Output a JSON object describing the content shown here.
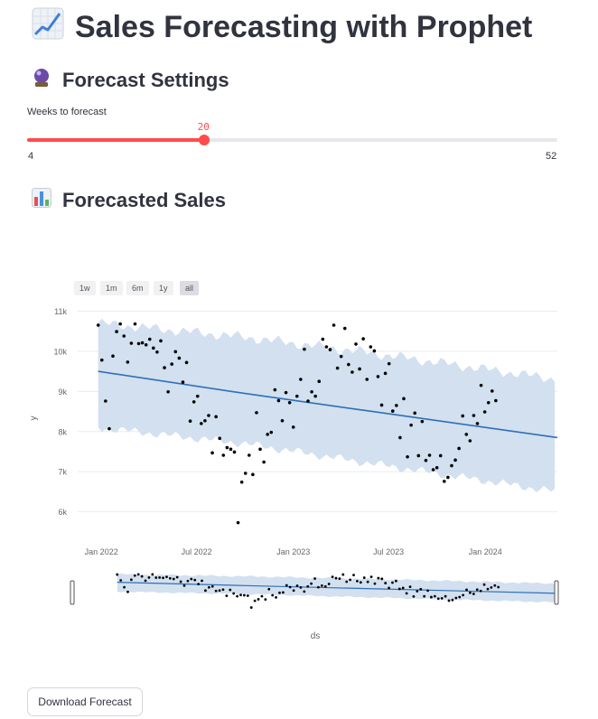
{
  "header": {
    "title": "Sales Forecasting with Prophet"
  },
  "settings": {
    "heading": "Forecast Settings",
    "slider": {
      "label": "Weeks to forecast",
      "value": 20,
      "min": 4,
      "max": 52,
      "value_text": "20",
      "min_text": "4",
      "max_text": "52"
    }
  },
  "forecast": {
    "heading": "Forecasted Sales"
  },
  "range_selector": [
    "1w",
    "1m",
    "6m",
    "1y",
    "all"
  ],
  "range_selector_active": "all",
  "download_button": {
    "label": "Download Forecast"
  },
  "colors": {
    "accent": "#ff4b4b",
    "trend_line": "#2f6fb7",
    "band": "#d2e0ef",
    "points": "#000000"
  },
  "chart_data": {
    "type": "scatter",
    "xlabel": "ds",
    "ylabel": "y",
    "x_tick_labels": [
      "Jan 2022",
      "Jul 2022",
      "Jan 2023",
      "Jul 2023",
      "Jan 2024"
    ],
    "x_ticks": [
      "2022-01-01",
      "2022-07-01",
      "2023-01-01",
      "2023-07-01",
      "2024-01-01"
    ],
    "xlim": [
      "2021-11-17",
      "2024-05-17"
    ],
    "y_tick_labels": [
      "6k",
      "7k",
      "8k",
      "9k",
      "10k",
      "11k"
    ],
    "y_ticks": [
      6000,
      7000,
      8000,
      9000,
      10000,
      11000
    ],
    "ylim": [
      5700,
      11100
    ],
    "grid": true,
    "series": [
      {
        "kind": "actual",
        "x": [
          "2021-12-26",
          "2022-01-02",
          "2022-01-09",
          "2022-01-16",
          "2022-01-23",
          "2022-01-30",
          "2022-02-06",
          "2022-02-13",
          "2022-02-20",
          "2022-02-27",
          "2022-03-06",
          "2022-03-13",
          "2022-03-20",
          "2022-03-27",
          "2022-04-03",
          "2022-04-10",
          "2022-04-17",
          "2022-04-24",
          "2022-05-01",
          "2022-05-08",
          "2022-05-15",
          "2022-05-22",
          "2022-05-29",
          "2022-06-05",
          "2022-06-12",
          "2022-06-19",
          "2022-06-26",
          "2022-07-03",
          "2022-07-10",
          "2022-07-17",
          "2022-07-24",
          "2022-07-31",
          "2022-08-07",
          "2022-08-14",
          "2022-08-21",
          "2022-08-28",
          "2022-09-04",
          "2022-09-11",
          "2022-09-18",
          "2022-09-25",
          "2022-10-02",
          "2022-10-09",
          "2022-10-16",
          "2022-10-23",
          "2022-10-30",
          "2022-11-06",
          "2022-11-13",
          "2022-11-20",
          "2022-11-27",
          "2022-12-04",
          "2022-12-11",
          "2022-12-18",
          "2022-12-25",
          "2023-01-01",
          "2023-01-08",
          "2023-01-15",
          "2023-01-22",
          "2023-01-29",
          "2023-02-05",
          "2023-02-12",
          "2023-02-19",
          "2023-02-26",
          "2023-03-05",
          "2023-03-12",
          "2023-03-19",
          "2023-03-26",
          "2023-04-02",
          "2023-04-09",
          "2023-04-16",
          "2023-04-23",
          "2023-04-30",
          "2023-05-07",
          "2023-05-14",
          "2023-05-21",
          "2023-05-28",
          "2023-06-04",
          "2023-06-11",
          "2023-06-18",
          "2023-06-25",
          "2023-07-02",
          "2023-07-09",
          "2023-07-16",
          "2023-07-23",
          "2023-07-30",
          "2023-08-06",
          "2023-08-13",
          "2023-08-20",
          "2023-08-27",
          "2023-09-03",
          "2023-09-10",
          "2023-09-17",
          "2023-09-24",
          "2023-10-01",
          "2023-10-08",
          "2023-10-15",
          "2023-10-22",
          "2023-10-29",
          "2023-11-05",
          "2023-11-12",
          "2023-11-19",
          "2023-11-26",
          "2023-12-03",
          "2023-12-10",
          "2023-12-17",
          "2023-12-24",
          "2023-12-31",
          "2024-01-07",
          "2024-01-14",
          "2024-01-21"
        ],
        "y": [
          10650,
          9780,
          8760,
          8070,
          9880,
          10490,
          10680,
          10380,
          9730,
          10200,
          10680,
          10190,
          10210,
          10160,
          10300,
          10080,
          9980,
          10260,
          9590,
          8990,
          9680,
          9990,
          9830,
          9230,
          9720,
          8260,
          8740,
          8880,
          8200,
          8270,
          8400,
          7470,
          8370,
          7830,
          7410,
          7600,
          7560,
          7490,
          5730,
          6740,
          6960,
          7410,
          6930,
          8470,
          7560,
          7240,
          7930,
          7980,
          9040,
          8770,
          8270,
          8970,
          8720,
          8110,
          8880,
          9300,
          10050,
          8760,
          8990,
          8880,
          9250,
          10300,
          10110,
          10040,
          10650,
          9580,
          9870,
          10570,
          9670,
          9480,
          10180,
          9560,
          10310,
          9300,
          10110,
          10010,
          9370,
          8660,
          9450,
          9690,
          8510,
          8650,
          7850,
          8820,
          7370,
          8160,
          8460,
          7400,
          8250,
          7280,
          7410,
          7050,
          7100,
          7400,
          6760,
          6860,
          7150,
          7290,
          7580,
          8390,
          7930,
          7770,
          8400,
          8200,
          9150,
          8490,
          8720,
          9010,
          8770
        ]
      },
      {
        "kind": "trend",
        "x": [
          "2021-12-26",
          "2022-10-01",
          "2023-06-01",
          "2024-05-17"
        ],
        "y": [
          9500,
          8950,
          8500,
          7850
        ]
      },
      {
        "kind": "uncertainty_band",
        "x": [
          "2021-12-26",
          "2022-10-01",
          "2023-06-01",
          "2024-05-17"
        ],
        "upper": [
          10700,
          10350,
          9950,
          9300
        ],
        "lower": [
          8100,
          7700,
          7200,
          6500
        ]
      }
    ]
  }
}
